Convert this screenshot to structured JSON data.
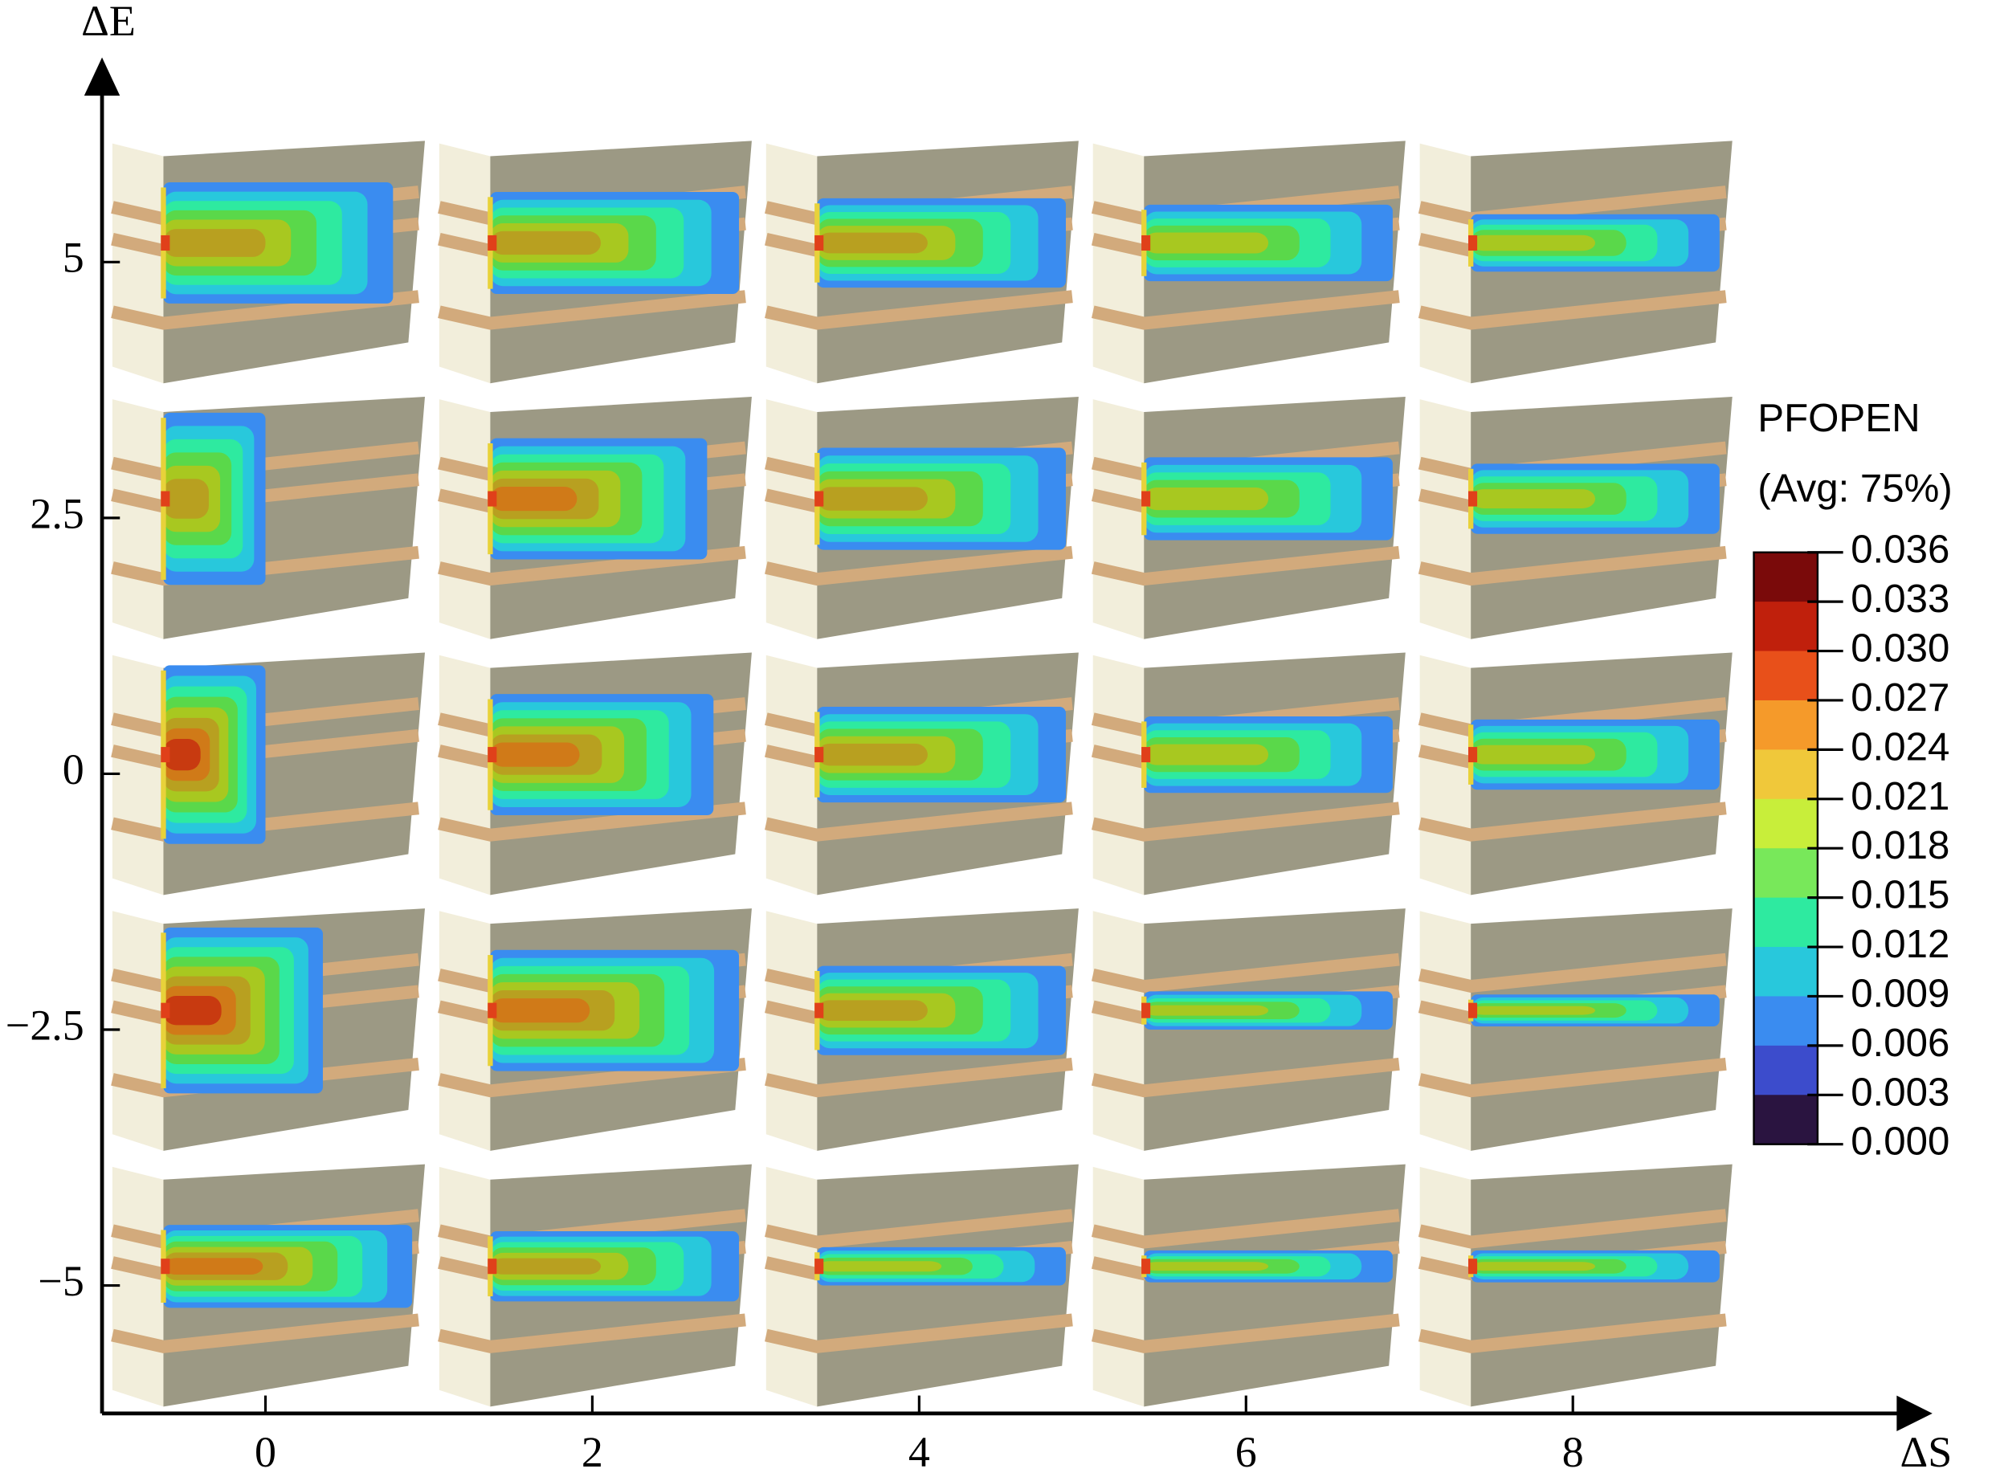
{
  "chart_data": {
    "type": "panel-grid",
    "x_label": "ΔS",
    "y_label": "ΔE",
    "xlim": [
      -1,
      10.2
    ],
    "ylim": [
      -6.25,
      7
    ],
    "xticks": [
      0,
      2,
      4,
      6,
      8
    ],
    "yticks": [
      5,
      2.5,
      0,
      {
        "value": -2.5,
        "label": "−2.5"
      },
      {
        "value": -5,
        "label": "−5"
      }
    ],
    "colorbar": {
      "title": "PFOPEN",
      "subtitle": "(Avg: 75%)",
      "ticks": [
        0.036,
        0.033,
        {
          "value": 0.03,
          "label": "0.030"
        },
        0.027,
        0.024,
        0.021,
        0.018,
        0.015,
        0.012,
        0.009,
        0.006,
        0.003,
        {
          "value": 0,
          "label": "0.000"
        }
      ],
      "colors": [
        "#7a0a0a",
        "#c0200c",
        "#e8501a",
        "#f59a2a",
        "#f0c83a",
        "#c8ee3a",
        "#78e85a",
        "#2eeaa0",
        "#28c8dc",
        "#3a8cf0",
        "#3c4ccc",
        "#2a1440"
      ]
    }
  }
}
